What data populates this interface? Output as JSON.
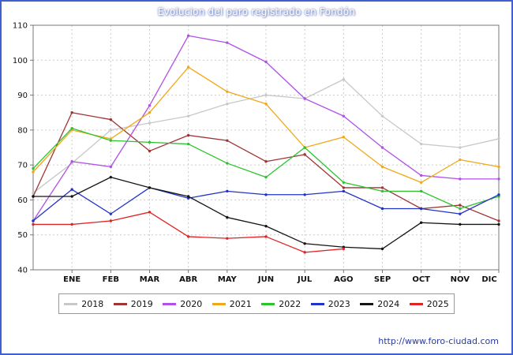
{
  "chart_data": {
    "type": "line",
    "title": "Evolucion del paro registrado en Fondón",
    "categories": [
      "ENE",
      "FEB",
      "MAR",
      "ABR",
      "MAY",
      "JUN",
      "JUL",
      "AGO",
      "SEP",
      "OCT",
      "NOV",
      "DIC"
    ],
    "ylim": [
      40,
      110
    ],
    "ytick_step": 10,
    "grid": true,
    "legend_position": "bottom",
    "axis_color": "#777777",
    "grid_color": "#cccccc",
    "series": [
      {
        "name": "2018",
        "color": "#c8c8c8",
        "start": 62,
        "values": [
          70.5,
          80,
          82,
          84,
          87.5,
          90,
          89,
          94.5,
          84,
          76,
          75,
          77.5
        ]
      },
      {
        "name": "2019",
        "color": "#9e3434",
        "start": 61,
        "values": [
          85,
          83,
          74,
          78.5,
          77,
          71,
          73,
          63.5,
          63.5,
          57.5,
          58.5,
          54
        ]
      },
      {
        "name": "2020",
        "color": "#b050e8",
        "start": 54,
        "values": [
          71,
          69.5,
          87,
          107,
          105,
          99.5,
          89,
          84,
          75,
          67,
          66,
          66
        ]
      },
      {
        "name": "2021",
        "color": "#f0a818",
        "start": 68,
        "values": [
          80,
          77.5,
          85,
          98,
          91,
          87.5,
          75,
          78,
          69.5,
          65,
          71.5,
          69.5
        ]
      },
      {
        "name": "2022",
        "color": "#2cc42c",
        "start": 69,
        "values": [
          80.5,
          77,
          76.5,
          76,
          70.5,
          66.5,
          75,
          65,
          62.5,
          62.5,
          57.5,
          61
        ]
      },
      {
        "name": "2023",
        "color": "#2234c8",
        "start": 54,
        "values": [
          63,
          56,
          63.5,
          60.5,
          62.5,
          61.5,
          61.5,
          62.5,
          57.5,
          57.5,
          56,
          61.5
        ]
      },
      {
        "name": "2024",
        "color": "#151515",
        "start": 61,
        "values": [
          61,
          66.5,
          63.5,
          61,
          55,
          52.5,
          47.5,
          46.5,
          46,
          53.5,
          53,
          53
        ]
      },
      {
        "name": "2025",
        "color": "#e02424",
        "start": 53,
        "values": [
          53,
          54,
          56.5,
          49.5,
          49,
          49.5,
          45,
          46,
          null,
          null,
          null,
          null
        ]
      }
    ]
  },
  "footer": {
    "url": "http://www.foro-ciudad.com"
  }
}
